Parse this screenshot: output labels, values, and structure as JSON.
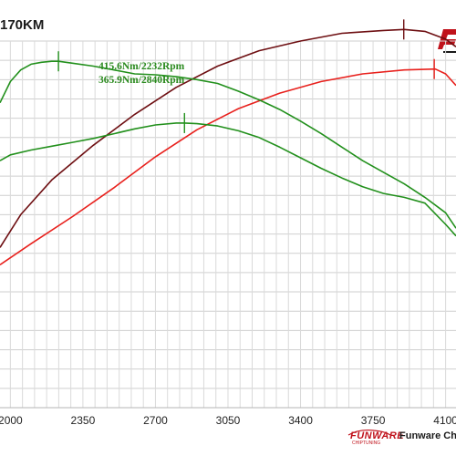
{
  "title": "170KM",
  "footer": {
    "logo_text": "FUNWARE",
    "logo_subtext": "CHIPTUNING",
    "brand_text": "Funware Chip"
  },
  "chart_data": {
    "type": "line",
    "xlim": [
      1950,
      4150
    ],
    "x_ticks": [
      2000,
      2350,
      2700,
      3050,
      3400,
      3750,
      4100
    ],
    "x_tick_labels": [
      "2000",
      "2350",
      "2700",
      "3050",
      "3400",
      "3750",
      "4100"
    ],
    "ylim": [
      0,
      19
    ],
    "grid": true,
    "annotations": [
      {
        "text": "415.6Nm/2232Rpm",
        "color": "#2a8a1e"
      },
      {
        "text": "365.9Nm/2840Rpm",
        "color": "#2a8a1e"
      }
    ],
    "series": [
      {
        "color": "#6e0f12",
        "x": [
          1950,
          2050,
          2200,
          2400,
          2600,
          2800,
          3000,
          3200,
          3400,
          3600,
          3800,
          3900,
          4000,
          4100,
          4150
        ],
        "y": [
          8.3,
          10.0,
          11.8,
          13.6,
          15.2,
          16.6,
          17.7,
          18.5,
          19.0,
          19.4,
          19.55,
          19.6,
          19.5,
          19.1,
          18.7
        ],
        "peak_x": 3898
      },
      {
        "color": "#e8201c",
        "x": [
          1950,
          2100,
          2300,
          2500,
          2700,
          2900,
          3100,
          3300,
          3500,
          3700,
          3900,
          4050,
          4100,
          4150
        ],
        "y": [
          7.4,
          8.5,
          9.9,
          11.4,
          13.0,
          14.4,
          15.5,
          16.3,
          16.9,
          17.3,
          17.5,
          17.55,
          17.3,
          16.7
        ],
        "peak_x": 4045
      },
      {
        "color": "#22901c",
        "x": [
          1950,
          2000,
          2050,
          2100,
          2150,
          2200,
          2232,
          2300,
          2400,
          2500,
          2600,
          2700,
          2800,
          2900,
          3000,
          3100,
          3200,
          3300,
          3400,
          3500,
          3600,
          3700,
          3800,
          3900,
          4000,
          4100,
          4150
        ],
        "y": [
          15.8,
          16.9,
          17.5,
          17.8,
          17.9,
          17.95,
          17.95,
          17.85,
          17.7,
          17.5,
          17.3,
          17.25,
          17.15,
          17.0,
          16.8,
          16.4,
          15.95,
          15.45,
          14.85,
          14.2,
          13.5,
          12.8,
          12.2,
          11.6,
          10.9,
          10.1,
          9.3
        ],
        "peak_x": 2232
      },
      {
        "color": "#22901c",
        "x": [
          1950,
          2000,
          2100,
          2200,
          2300,
          2400,
          2500,
          2600,
          2700,
          2800,
          2840,
          2900,
          3000,
          3100,
          3200,
          3300,
          3400,
          3500,
          3600,
          3700,
          3800,
          3900,
          4000,
          4100,
          4150
        ],
        "y": [
          12.8,
          13.1,
          13.35,
          13.55,
          13.75,
          13.95,
          14.2,
          14.45,
          14.65,
          14.75,
          14.75,
          14.72,
          14.6,
          14.35,
          14.0,
          13.5,
          12.95,
          12.4,
          11.9,
          11.45,
          11.1,
          10.9,
          10.6,
          9.5,
          8.9
        ],
        "peak_x": 2840
      }
    ]
  }
}
